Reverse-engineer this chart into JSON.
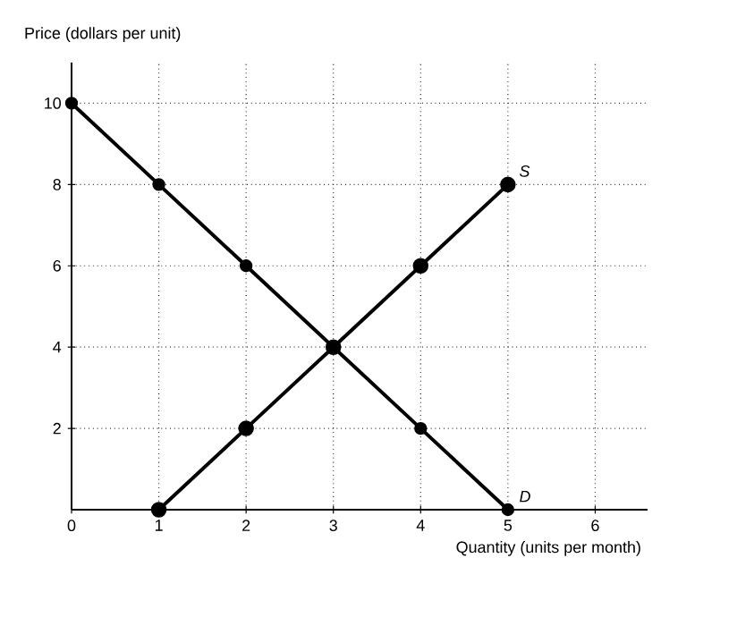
{
  "chart_data": {
    "type": "line",
    "xlabel": "Quantity (units per month)",
    "ylabel": "Price (dollars per unit)",
    "xlim": [
      0,
      6.6
    ],
    "ylim": [
      0,
      11
    ],
    "xticks": [
      0,
      1,
      2,
      3,
      4,
      5,
      6
    ],
    "yticks": [
      2,
      4,
      6,
      8,
      10
    ],
    "grid": true,
    "marker": "circle",
    "line_style": "solid",
    "series": [
      {
        "name": "S",
        "color": "#000000",
        "x": [
          1,
          2,
          3,
          4,
          5
        ],
        "values": [
          0,
          2,
          4,
          6,
          8
        ]
      },
      {
        "name": "D",
        "color": "#000000",
        "x": [
          0,
          1,
          2,
          3,
          4,
          5
        ],
        "values": [
          10,
          8,
          6,
          4,
          2,
          0
        ]
      }
    ]
  }
}
